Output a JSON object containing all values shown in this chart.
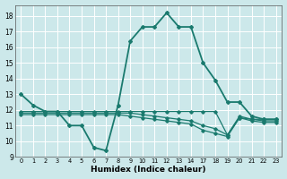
{
  "xlabel": "Humidex (Indice chaleur)",
  "background_color": "#cce8ea",
  "grid_color": "#ffffff",
  "line_color": "#1a7a6e",
  "xlim": [
    -0.5,
    23.5
  ],
  "ylim": [
    9,
    18.7
  ],
  "yticks": [
    9,
    10,
    11,
    12,
    13,
    14,
    15,
    16,
    17,
    18
  ],
  "xtick_positions": [
    0,
    1,
    2,
    3,
    4,
    5,
    6,
    7,
    8,
    9,
    10,
    11,
    12,
    13,
    14,
    17,
    18,
    19,
    20,
    21,
    22,
    23
  ],
  "xtick_labels": [
    "0",
    "1",
    "2",
    "3",
    "4",
    "5",
    "6",
    "7",
    "8",
    "9",
    "10",
    "11",
    "12",
    "13",
    "14",
    "17",
    "18",
    "19",
    "20",
    "21",
    "22",
    "23"
  ],
  "lines": [
    {
      "x": [
        0,
        1,
        2,
        3,
        4,
        5,
        6,
        7,
        8,
        9,
        10,
        11,
        12,
        13,
        14,
        17,
        18,
        19,
        20,
        21,
        22,
        23
      ],
      "y": [
        13.0,
        12.3,
        11.9,
        11.9,
        11.0,
        11.0,
        9.6,
        9.4,
        12.3,
        16.4,
        17.3,
        17.3,
        18.2,
        17.3,
        17.3,
        15.0,
        13.9,
        12.5,
        12.5,
        11.6,
        11.4,
        11.4
      ],
      "linewidth": 1.3,
      "markersize": 2.0
    },
    {
      "x": [
        0,
        1,
        2,
        3,
        4,
        5,
        6,
        7,
        8,
        9,
        10,
        11,
        12,
        13,
        14,
        17,
        18,
        19,
        20,
        21,
        22,
        23
      ],
      "y": [
        11.9,
        11.9,
        11.9,
        11.9,
        11.9,
        11.9,
        11.9,
        11.9,
        11.9,
        11.9,
        11.9,
        11.9,
        11.9,
        11.9,
        11.9,
        11.9,
        11.9,
        10.4,
        11.6,
        11.4,
        11.4,
        11.4
      ],
      "linewidth": 0.9,
      "markersize": 1.8
    },
    {
      "x": [
        0,
        1,
        2,
        3,
        4,
        5,
        6,
        7,
        8,
        9,
        10,
        11,
        12,
        13,
        14,
        17,
        18,
        19,
        20,
        21,
        22,
        23
      ],
      "y": [
        11.8,
        11.8,
        11.8,
        11.8,
        11.8,
        11.8,
        11.8,
        11.8,
        11.8,
        11.8,
        11.7,
        11.6,
        11.5,
        11.4,
        11.3,
        11.0,
        10.8,
        10.4,
        11.5,
        11.4,
        11.3,
        11.3
      ],
      "linewidth": 0.9,
      "markersize": 1.8
    },
    {
      "x": [
        0,
        1,
        2,
        3,
        4,
        5,
        6,
        7,
        8,
        9,
        10,
        11,
        12,
        13,
        14,
        17,
        18,
        19,
        20,
        21,
        22,
        23
      ],
      "y": [
        11.7,
        11.7,
        11.7,
        11.7,
        11.7,
        11.7,
        11.7,
        11.7,
        11.7,
        11.6,
        11.5,
        11.4,
        11.3,
        11.2,
        11.1,
        10.7,
        10.5,
        10.3,
        11.5,
        11.3,
        11.2,
        11.2
      ],
      "linewidth": 0.9,
      "markersize": 1.8
    }
  ]
}
